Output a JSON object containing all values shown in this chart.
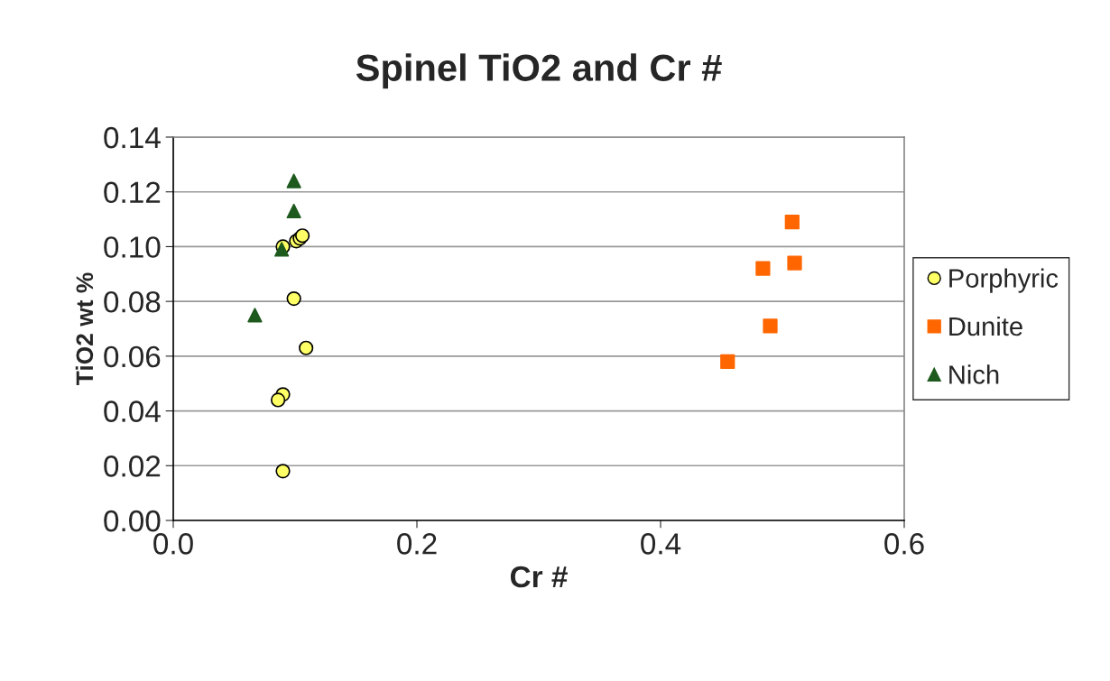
{
  "chart_data": {
    "type": "scatter",
    "title": "Spinel TiO2 and Cr #",
    "xlabel": "Cr #",
    "ylabel": "TiO2 wt %",
    "xlim": [
      0,
      0.6
    ],
    "ylim": [
      0,
      0.14
    ],
    "xticks": [
      {
        "value": 0,
        "label": "0.0"
      },
      0.2,
      0.4,
      0.6
    ],
    "yticks": [
      {
        "value": 0,
        "label": "0.00"
      },
      {
        "value": 0.02,
        "label": "0.02"
      },
      {
        "value": 0.04,
        "label": "0.04"
      },
      {
        "value": 0.06,
        "label": "0.06"
      },
      {
        "value": 0.08,
        "label": "0.08"
      },
      {
        "value": 0.1,
        "label": "0.10"
      },
      {
        "value": 0.12,
        "label": "0.12"
      },
      {
        "value": 0.14,
        "label": "0.14"
      }
    ],
    "grid": "y",
    "legend": "right",
    "series": [
      {
        "name": "Porphyric",
        "color": "#ffff66",
        "marker": "circle",
        "x": [
          0.09,
          0.101,
          0.104,
          0.106,
          0.099,
          0.109,
          0.09,
          0.086,
          0.09
        ],
        "values": [
          0.1,
          0.102,
          0.103,
          0.104,
          0.081,
          0.063,
          0.046,
          0.044,
          0.018
        ]
      },
      {
        "name": "Dunite",
        "color": "#ff6600",
        "marker": "square",
        "x": [
          0.508,
          0.484,
          0.51,
          0.49,
          0.455
        ],
        "values": [
          0.109,
          0.092,
          0.094,
          0.071,
          0.058
        ]
      },
      {
        "name": "Nich",
        "color": "#1e5a1e",
        "marker": "triangle",
        "x": [
          0.099,
          0.099,
          0.089,
          0.067
        ],
        "values": [
          0.124,
          0.113,
          0.099,
          0.075
        ]
      }
    ]
  }
}
